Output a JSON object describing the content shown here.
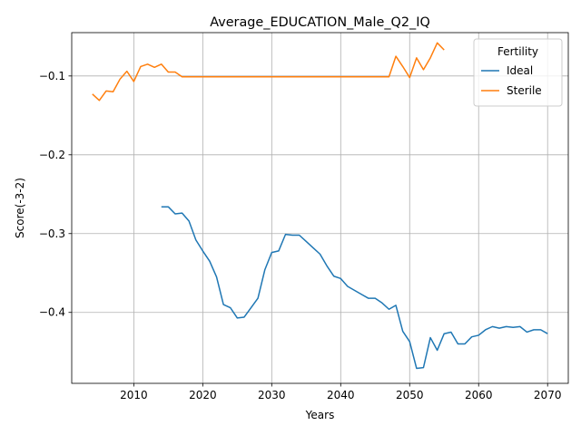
{
  "chart_data": {
    "type": "line",
    "title": "Average_EDUCATION_Male_Q2_IQ",
    "xlabel": "Years",
    "ylabel": "Score(-3-2)",
    "xlim": [
      2001,
      2073
    ],
    "ylim": [
      -0.49,
      -0.045
    ],
    "x_ticks": [
      2010,
      2020,
      2030,
      2040,
      2050,
      2060,
      2070
    ],
    "y_ticks": [
      -0.4,
      -0.3,
      -0.2,
      -0.1
    ],
    "y_tick_labels": [
      "−0.4",
      "−0.3",
      "−0.2",
      "−0.1"
    ],
    "grid": true,
    "legend": {
      "title": "Fertility",
      "position": "top-right"
    },
    "series": [
      {
        "name": "Ideal",
        "color": "#1f77b4",
        "x": [
          2014,
          2015,
          2016,
          2017,
          2018,
          2019,
          2020,
          2021,
          2022,
          2023,
          2024,
          2025,
          2026,
          2027,
          2028,
          2029,
          2030,
          2031,
          2032,
          2033,
          2034,
          2035,
          2036,
          2037,
          2038,
          2039,
          2040,
          2041,
          2042,
          2043,
          2044,
          2045,
          2046,
          2047,
          2048,
          2049,
          2050,
          2051,
          2052,
          2053,
          2054,
          2055,
          2056,
          2057,
          2058,
          2059,
          2060,
          2061,
          2062,
          2063,
          2064,
          2065,
          2066,
          2067,
          2068,
          2069,
          2070
        ],
        "values": [
          -0.266,
          -0.266,
          -0.275,
          -0.274,
          -0.284,
          -0.308,
          -0.322,
          -0.335,
          -0.355,
          -0.39,
          -0.394,
          -0.407,
          -0.406,
          -0.394,
          -0.382,
          -0.346,
          -0.324,
          -0.322,
          -0.301,
          -0.302,
          -0.302,
          -0.31,
          -0.318,
          -0.326,
          -0.341,
          -0.354,
          -0.357,
          -0.367,
          -0.372,
          -0.377,
          -0.382,
          -0.382,
          -0.388,
          -0.396,
          -0.391,
          -0.424,
          -0.437,
          -0.471,
          -0.47,
          -0.432,
          -0.448,
          -0.427,
          -0.425,
          -0.44,
          -0.44,
          -0.431,
          -0.429,
          -0.422,
          -0.418,
          -0.42,
          -0.418,
          -0.419,
          -0.418,
          -0.425,
          -0.422,
          -0.422,
          -0.427
        ]
      },
      {
        "name": "Sterile",
        "color": "#ff7f0e",
        "x": [
          2004,
          2005,
          2006,
          2007,
          2008,
          2009,
          2010,
          2011,
          2012,
          2013,
          2014,
          2015,
          2016,
          2017,
          2018,
          2019,
          2020,
          2021,
          2022,
          2023,
          2024,
          2025,
          2026,
          2027,
          2028,
          2029,
          2030,
          2031,
          2032,
          2033,
          2034,
          2035,
          2036,
          2037,
          2038,
          2039,
          2040,
          2041,
          2042,
          2043,
          2044,
          2045,
          2046,
          2047,
          2048,
          2049,
          2050,
          2051,
          2052,
          2053,
          2054,
          2055
        ],
        "values": [
          -0.123,
          -0.131,
          -0.119,
          -0.12,
          -0.104,
          -0.094,
          -0.107,
          -0.088,
          -0.085,
          -0.089,
          -0.085,
          -0.095,
          -0.095,
          -0.101,
          -0.101,
          -0.101,
          -0.101,
          -0.101,
          -0.101,
          -0.101,
          -0.101,
          -0.101,
          -0.101,
          -0.101,
          -0.101,
          -0.101,
          -0.101,
          -0.101,
          -0.101,
          -0.101,
          -0.101,
          -0.101,
          -0.101,
          -0.101,
          -0.101,
          -0.101,
          -0.101,
          -0.101,
          -0.101,
          -0.101,
          -0.101,
          -0.101,
          -0.101,
          -0.101,
          -0.075,
          -0.088,
          -0.102,
          -0.077,
          -0.092,
          -0.077,
          -0.058,
          -0.067
        ]
      }
    ]
  }
}
